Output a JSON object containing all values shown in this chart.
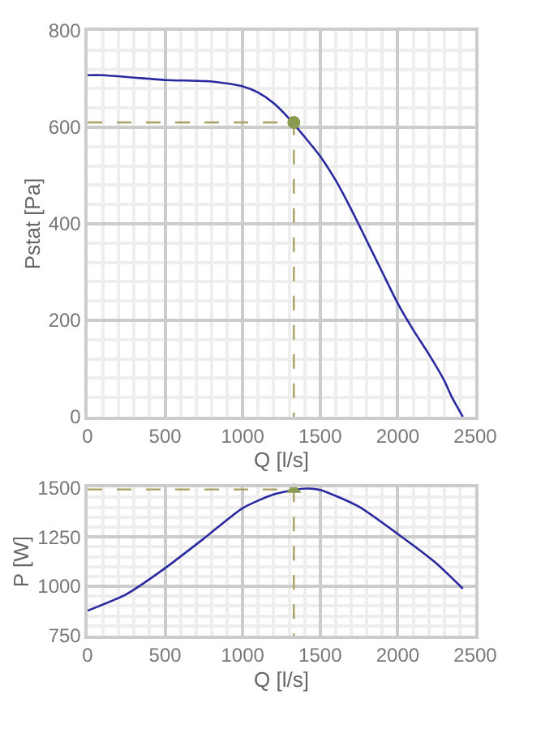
{
  "chart_data": [
    {
      "type": "line",
      "xlabel": "Q [l/s]",
      "ylabel": "Pstat [Pa]",
      "xlim": [
        0,
        2500
      ],
      "ylim": [
        0,
        800
      ],
      "xticks": [
        0,
        500,
        1000,
        1500,
        2000,
        2500
      ],
      "yticks": [
        0,
        200,
        400,
        600,
        800
      ],
      "grid": true,
      "series": [
        {
          "color": "#2a2aa0",
          "marker": "none",
          "line_style": "solid",
          "x": [
            0,
            100,
            300,
            500,
            800,
            1000,
            1100,
            1200,
            1300,
            1400,
            1500,
            1600,
            1700,
            1800,
            1900,
            2000,
            2100,
            2200,
            2300,
            2350,
            2420
          ],
          "values": [
            708,
            708,
            703,
            698,
            695,
            685,
            672,
            650,
            618,
            580,
            540,
            490,
            430,
            365,
            300,
            235,
            180,
            130,
            75,
            40,
            0
          ]
        },
        {
          "color": "#a8a060",
          "marker": "none",
          "line_style": "dashed",
          "x": [
            0,
            1330,
            1330
          ],
          "values": [
            610,
            610,
            0
          ]
        },
        {
          "type": "scatter",
          "color": "#8a9a50",
          "marker": "circle",
          "x": [
            1330
          ],
          "values": [
            610
          ]
        }
      ]
    },
    {
      "type": "line",
      "xlabel": "Q [l/s]",
      "ylabel": "P [W]",
      "xlim": [
        0,
        2500
      ],
      "ylim": [
        750,
        1500
      ],
      "xticks": [
        0,
        500,
        1000,
        1500,
        2000,
        2500
      ],
      "yticks": [
        750,
        1000,
        1250,
        1500
      ],
      "grid": true,
      "series": [
        {
          "color": "#2a2aa0",
          "marker": "none",
          "line_style": "solid",
          "x": [
            0,
            250,
            500,
            750,
            1000,
            1200,
            1400,
            1500,
            1750,
            2000,
            2250,
            2420
          ],
          "values": [
            877,
            960,
            1092,
            1242,
            1396,
            1465,
            1495,
            1488,
            1403,
            1265,
            1115,
            988
          ]
        },
        {
          "color": "#a8a060",
          "marker": "none",
          "line_style": "dashed",
          "x": [
            0,
            1330,
            1330
          ],
          "values": [
            1490,
            1490,
            750
          ]
        },
        {
          "type": "scatter",
          "color": "#8a9a50",
          "marker": "triangle",
          "x": [
            1330
          ],
          "values": [
            1490
          ]
        }
      ]
    }
  ]
}
